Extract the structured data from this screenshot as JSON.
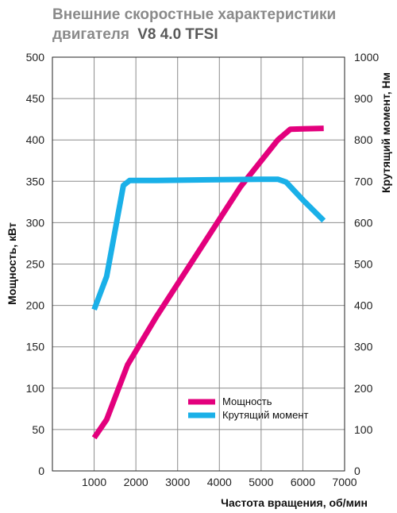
{
  "chart_data": {
    "type": "line",
    "title_line1": "Внешние скоростные характеристики",
    "title_line2_prefix": "двигателя",
    "title_line2_bold": "V8 4.0 TFSI",
    "xlabel": "Частота вращения, об/мин",
    "ylabel_left": "Мощность, кВт",
    "ylabel_right": "Крутящий момент, Нм",
    "xlim": [
      0,
      7000
    ],
    "ylim_left": [
      0,
      500
    ],
    "ylim_right": [
      0,
      1000
    ],
    "x_ticks": [
      1000,
      2000,
      3000,
      4000,
      5000,
      6000,
      7000
    ],
    "y_ticks_left": [
      0,
      50,
      100,
      150,
      200,
      250,
      300,
      350,
      400,
      450,
      500
    ],
    "y_ticks_right": [
      100,
      200,
      300,
      400,
      500,
      600,
      700,
      800,
      900,
      1000
    ],
    "y_tick_right_zero": "0",
    "grid": true,
    "legend_position": "bottom-right",
    "series": [
      {
        "name": "Мощность",
        "axis": "left",
        "color": "#e3007d",
        "x": [
          1000,
          1300,
          1800,
          2500,
          3500,
          4500,
          5400,
          5700,
          6500
        ],
        "y": [
          40,
          62,
          128,
          187,
          265,
          343,
          400,
          413,
          414
        ]
      },
      {
        "name": "Крутящий момент",
        "axis": "right",
        "color": "#1ab0e8",
        "x": [
          1000,
          1300,
          1700,
          1850,
          2500,
          4000,
          5000,
          5400,
          5600,
          6000,
          6500
        ],
        "y": [
          390,
          470,
          690,
          702,
          702,
          704,
          705,
          705,
          698,
          655,
          605
        ]
      }
    ]
  }
}
